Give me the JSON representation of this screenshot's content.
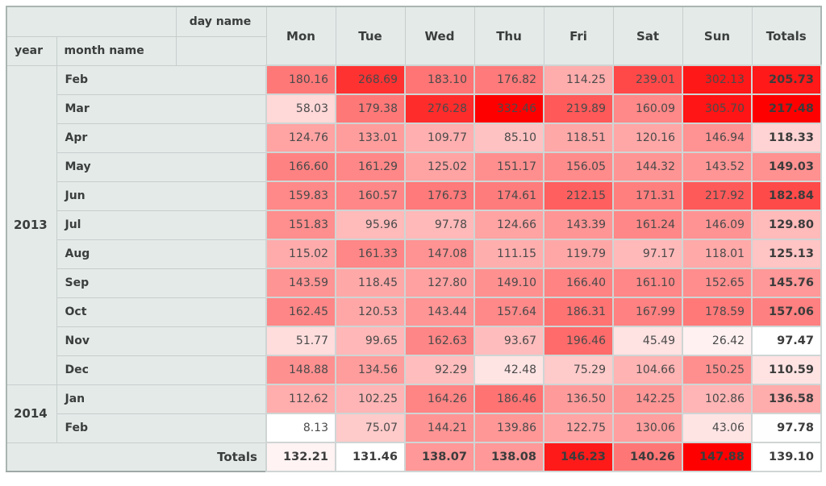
{
  "labels": {
    "col_axis_name": "day name",
    "row_axis_year": "year",
    "row_axis_month": "month name",
    "totals_col": "Totals",
    "totals_row": "Totals"
  },
  "colors": {
    "header_bg": "#e4eae8",
    "header_border": "#c6cecd",
    "cell_border": "#cfd5d4",
    "outer_border": "#aab5b3",
    "label_text": "#3a3e3d",
    "value_text": "#4a4a4a",
    "heat_max": "#ff0000",
    "heat_min": "#ffffff"
  },
  "chart_data": {
    "type": "heatmap",
    "title": "Pivot table of values by year / month name (rows) and day name (columns), white-to-red conditional formatting",
    "columns": [
      "Mon",
      "Tue",
      "Wed",
      "Thu",
      "Fri",
      "Sat",
      "Sun"
    ],
    "rows": [
      {
        "year": "2013",
        "month": "Feb",
        "values": [
          180.16,
          268.69,
          183.1,
          176.82,
          114.25,
          239.01,
          302.13
        ],
        "total": 205.73
      },
      {
        "year": "2013",
        "month": "Mar",
        "values": [
          58.03,
          179.38,
          276.28,
          332.46,
          219.89,
          160.09,
          305.7
        ],
        "total": 217.48
      },
      {
        "year": "2013",
        "month": "Apr",
        "values": [
          124.76,
          133.01,
          109.77,
          85.1,
          118.51,
          120.16,
          146.94
        ],
        "total": 118.33
      },
      {
        "year": "2013",
        "month": "May",
        "values": [
          166.6,
          161.29,
          125.02,
          151.17,
          156.05,
          144.32,
          143.52
        ],
        "total": 149.03
      },
      {
        "year": "2013",
        "month": "Jun",
        "values": [
          159.83,
          160.57,
          176.73,
          174.61,
          212.15,
          171.31,
          217.92
        ],
        "total": 182.84
      },
      {
        "year": "2013",
        "month": "Jul",
        "values": [
          151.83,
          95.96,
          97.78,
          124.66,
          143.39,
          161.24,
          146.09
        ],
        "total": 129.8
      },
      {
        "year": "2013",
        "month": "Aug",
        "values": [
          115.02,
          161.33,
          147.08,
          111.15,
          119.79,
          97.17,
          118.01
        ],
        "total": 125.13
      },
      {
        "year": "2013",
        "month": "Sep",
        "values": [
          143.59,
          118.45,
          127.8,
          149.1,
          166.4,
          161.1,
          152.65
        ],
        "total": 145.76
      },
      {
        "year": "2013",
        "month": "Oct",
        "values": [
          162.45,
          120.53,
          143.44,
          157.64,
          186.31,
          167.99,
          178.59
        ],
        "total": 157.06
      },
      {
        "year": "2013",
        "month": "Nov",
        "values": [
          51.77,
          99.65,
          162.63,
          93.67,
          196.46,
          45.49,
          26.42
        ],
        "total": 97.47
      },
      {
        "year": "2013",
        "month": "Dec",
        "values": [
          148.88,
          134.56,
          92.29,
          42.48,
          75.29,
          104.66,
          150.25
        ],
        "total": 110.59
      },
      {
        "year": "2014",
        "month": "Jan",
        "values": [
          112.62,
          102.25,
          164.26,
          186.46,
          136.5,
          142.25,
          102.86
        ],
        "total": 136.58
      },
      {
        "year": "2014",
        "month": "Feb",
        "values": [
          8.13,
          75.07,
          144.21,
          139.86,
          122.75,
          130.06,
          43.06
        ],
        "total": 97.78
      }
    ],
    "column_totals": [
      132.21,
      131.46,
      138.07,
      138.08,
      146.23,
      140.26,
      147.88
    ],
    "grand_total": 139.1,
    "color_scales": {
      "cells": {
        "min": 8.13,
        "max": 332.46
      },
      "row_totals": {
        "min": 97.47,
        "max": 217.48
      },
      "col_totals": {
        "min": 131.46,
        "max": 147.88
      }
    },
    "layout": {
      "legend": "none",
      "grid": "on"
    }
  }
}
